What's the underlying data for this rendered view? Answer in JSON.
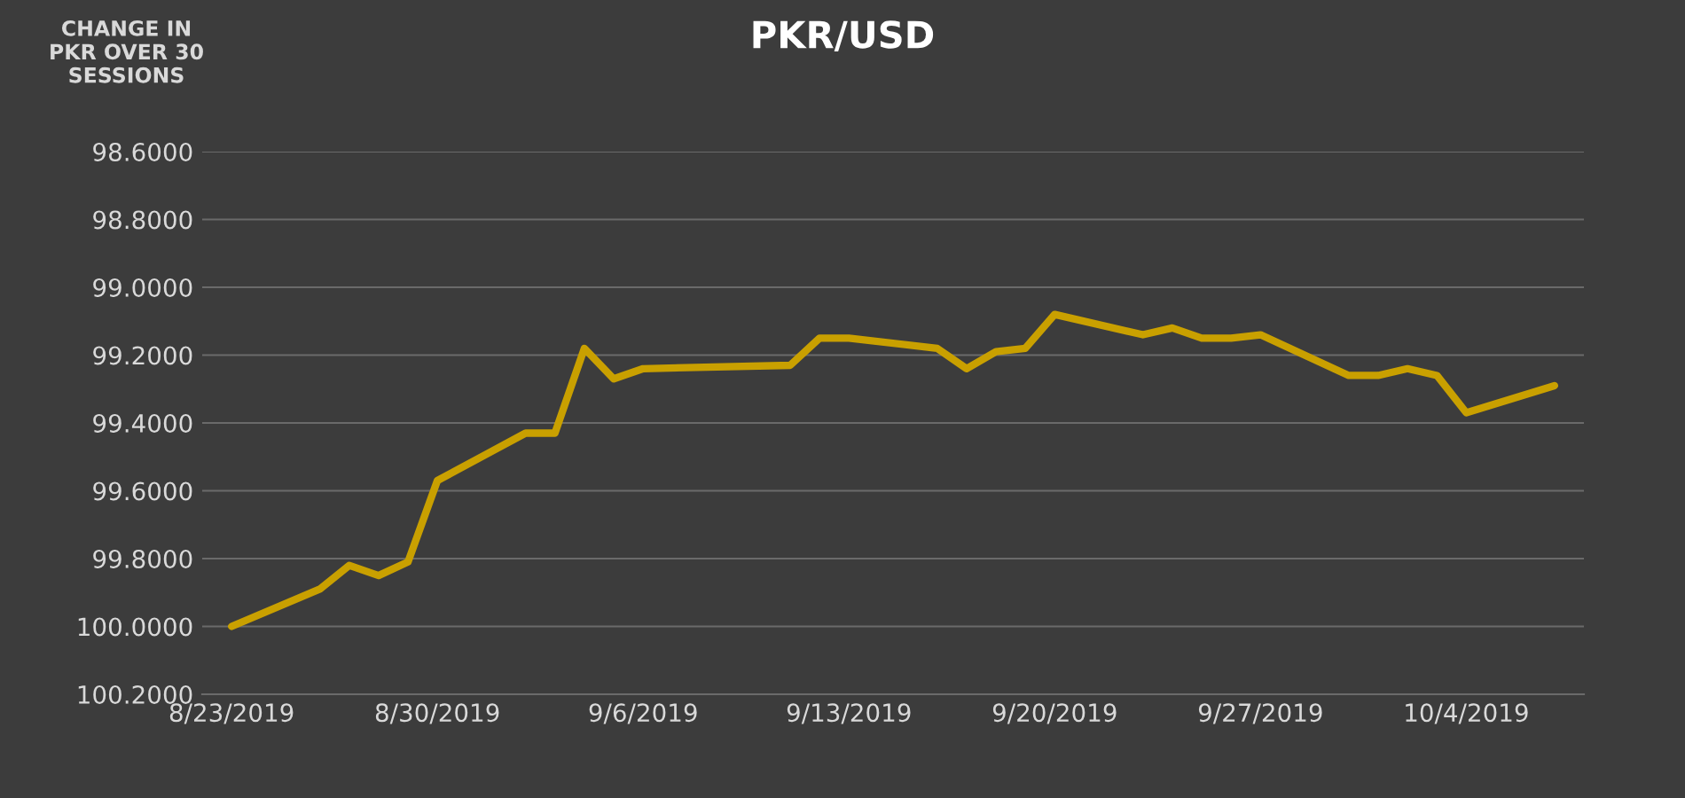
{
  "chart_data": {
    "type": "line",
    "title": "PKR/USD",
    "ylabel": "CHANGE IN PKR OVER 30 SESSIONS",
    "x": [
      "2019-08-23",
      "2019-08-26",
      "2019-08-27",
      "2019-08-28",
      "2019-08-29",
      "2019-08-30",
      "2019-09-02",
      "2019-09-03",
      "2019-09-04",
      "2019-09-05",
      "2019-09-06",
      "2019-09-11",
      "2019-09-12",
      "2019-09-13",
      "2019-09-16",
      "2019-09-17",
      "2019-09-18",
      "2019-09-19",
      "2019-09-20",
      "2019-09-23",
      "2019-09-24",
      "2019-09-25",
      "2019-09-26",
      "2019-09-27",
      "2019-09-30",
      "2019-10-01",
      "2019-10-02",
      "2019-10-03",
      "2019-10-04",
      "2019-10-07"
    ],
    "series": [
      {
        "color": "#c9a000",
        "values": [
          100.0,
          99.89,
          99.82,
          99.85,
          99.81,
          99.57,
          99.43,
          99.43,
          99.18,
          99.27,
          99.24,
          99.23,
          99.15,
          99.15,
          99.18,
          99.24,
          99.19,
          99.18,
          99.08,
          99.14,
          99.12,
          99.15,
          99.15,
          99.14,
          99.26,
          99.26,
          99.24,
          99.26,
          99.37,
          99.29
        ]
      }
    ],
    "xlim": [
      "2019-08-22",
      "2019-10-08"
    ],
    "xticks": [
      {
        "value": "2019-08-23",
        "label": "8/23/2019"
      },
      {
        "value": "2019-08-30",
        "label": "8/30/2019"
      },
      {
        "value": "2019-09-06",
        "label": "9/6/2019"
      },
      {
        "value": "2019-09-13",
        "label": "9/13/2019"
      },
      {
        "value": "2019-09-20",
        "label": "9/20/2019"
      },
      {
        "value": "2019-09-27",
        "label": "9/27/2019"
      },
      {
        "value": "2019-10-04",
        "label": "10/4/2019"
      }
    ],
    "ylim": [
      100.2,
      98.6
    ],
    "yticks": [
      {
        "value": 98.6,
        "label": "98.6000"
      },
      {
        "value": 98.8,
        "label": "98.8000"
      },
      {
        "value": 99.0,
        "label": "99.0000"
      },
      {
        "value": 99.2,
        "label": "99.2000"
      },
      {
        "value": 99.4,
        "label": "99.4000"
      },
      {
        "value": 99.6,
        "label": "99.6000"
      },
      {
        "value": 99.8,
        "label": "99.8000"
      },
      {
        "value": 100.0,
        "label": "100.0000"
      },
      {
        "value": 100.2,
        "label": "100.2000"
      }
    ],
    "grid": "y",
    "marker": "none",
    "line_style": "solid"
  }
}
